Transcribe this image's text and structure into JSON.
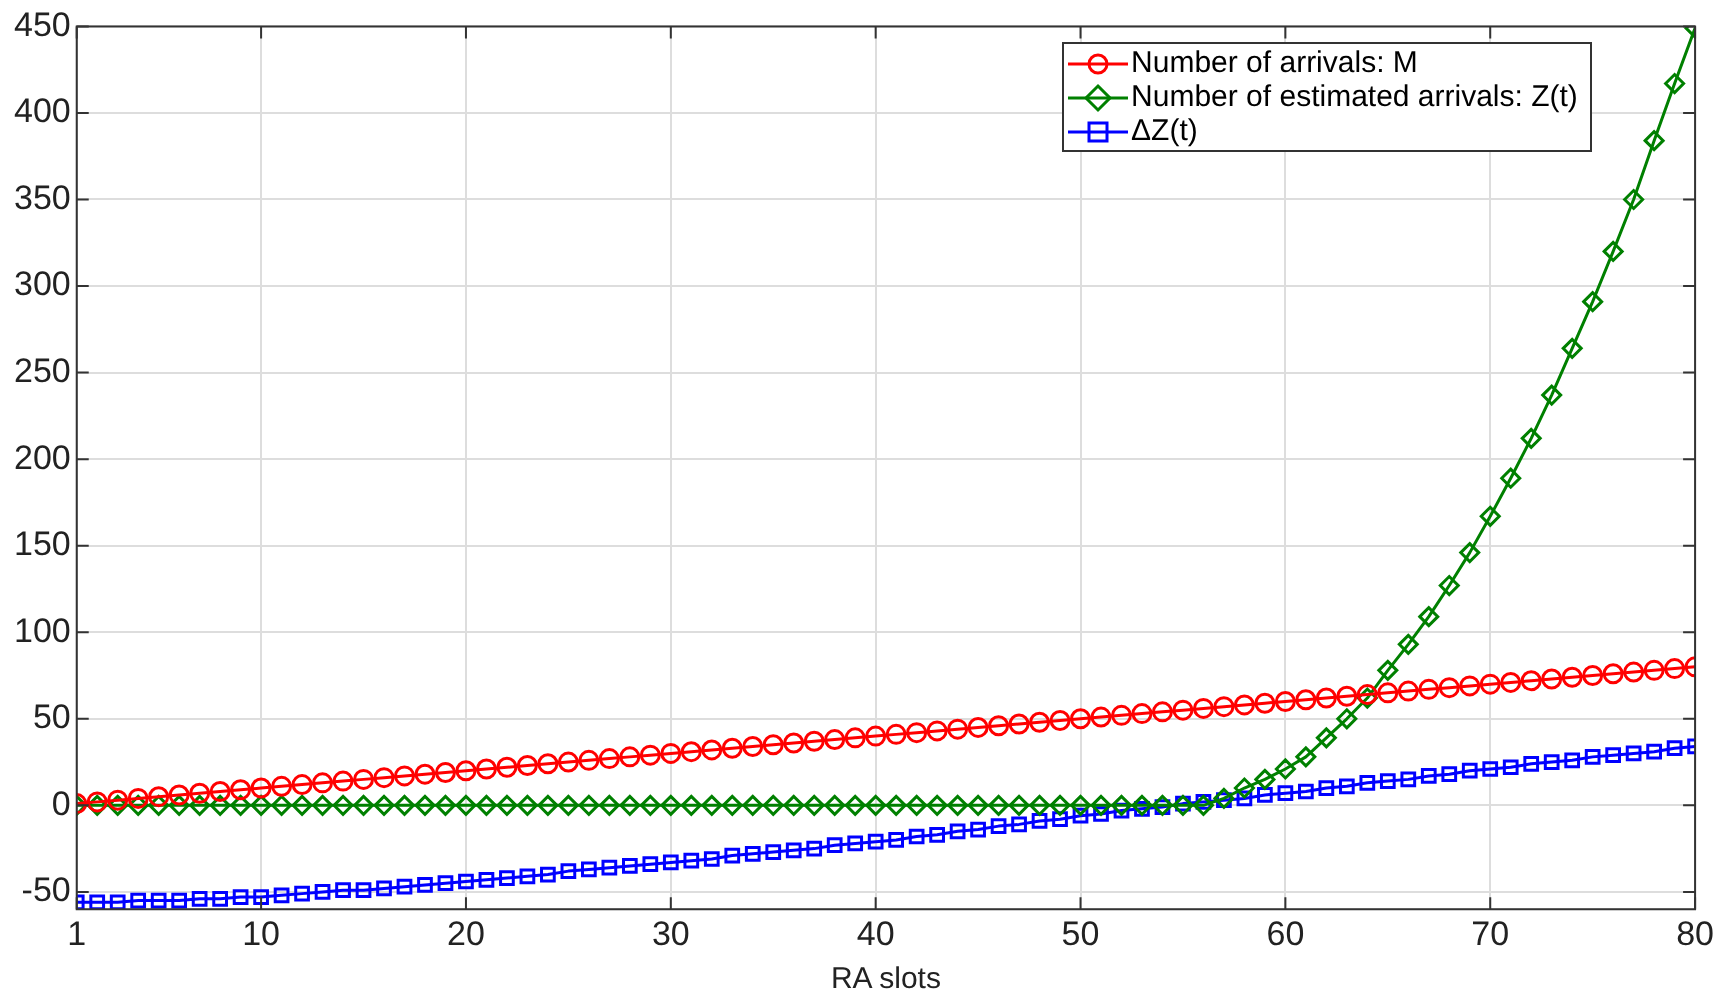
{
  "chart_data": {
    "type": "line",
    "xlabel": "RA slots",
    "x": [
      1,
      2,
      3,
      4,
      5,
      6,
      7,
      8,
      9,
      10,
      11,
      12,
      13,
      14,
      15,
      16,
      17,
      18,
      19,
      20,
      21,
      22,
      23,
      24,
      25,
      26,
      27,
      28,
      29,
      30,
      31,
      32,
      33,
      34,
      35,
      36,
      37,
      38,
      39,
      40,
      41,
      42,
      43,
      44,
      45,
      46,
      47,
      48,
      49,
      50,
      51,
      52,
      53,
      54,
      55,
      56,
      57,
      58,
      59,
      60,
      61,
      62,
      63,
      64,
      65,
      66,
      67,
      68,
      69,
      70,
      71,
      72,
      73,
      74,
      75,
      76,
      77,
      78,
      79,
      80
    ],
    "xlim": [
      1,
      80
    ],
    "xticks": [
      1,
      10,
      20,
      30,
      40,
      50,
      60,
      70,
      80
    ],
    "ylim": [
      -60,
      450
    ],
    "yticks": [
      -50,
      0,
      50,
      100,
      150,
      200,
      250,
      300,
      350,
      400,
      450
    ],
    "grid": true,
    "legend": "top right",
    "line_style": "solid",
    "series": [
      {
        "name": "Number of arrivals: M",
        "color": "#ff0000",
        "marker": "circle",
        "values": [
          1,
          2,
          3,
          4,
          5,
          6,
          7,
          8,
          9,
          10,
          11,
          12,
          13,
          14,
          15,
          16,
          17,
          18,
          19,
          20,
          21,
          22,
          23,
          24,
          25,
          26,
          27,
          28,
          29,
          30,
          31,
          32,
          33,
          34,
          35,
          36,
          37,
          38,
          39,
          40,
          41,
          42,
          43,
          44,
          45,
          46,
          47,
          48,
          49,
          50,
          51,
          52,
          53,
          54,
          55,
          56,
          57,
          58,
          59,
          60,
          61,
          62,
          63,
          64,
          65,
          66,
          67,
          68,
          69,
          70,
          71,
          72,
          73,
          74,
          75,
          76,
          77,
          78,
          79,
          80
        ]
      },
      {
        "name": "Number of estimated arrivals: Z(t)",
        "color": "#008000",
        "marker": "diamond",
        "values": [
          0,
          0,
          0,
          0,
          0,
          0,
          0,
          0,
          0,
          0,
          0,
          0,
          0,
          0,
          0,
          0,
          0,
          0,
          0,
          0,
          0,
          0,
          0,
          0,
          0,
          0,
          0,
          0,
          0,
          0,
          0,
          0,
          0,
          0,
          0,
          0,
          0,
          0,
          0,
          0,
          0,
          0,
          0,
          0,
          0,
          0,
          0,
          0,
          0,
          0,
          0,
          0,
          0,
          0,
          0,
          0,
          4,
          10,
          15,
          21,
          28,
          39,
          50,
          62,
          78,
          93,
          109,
          127,
          146,
          167,
          189,
          212,
          237,
          264,
          291,
          320,
          350,
          384,
          417,
          449
        ]
      },
      {
        "name": "ΔZ(t)",
        "color": "#0000ff",
        "marker": "square",
        "values": [
          -56,
          -56,
          -56,
          -55,
          -55,
          -55,
          -54,
          -54,
          -53,
          -53,
          -52,
          -51,
          -50,
          -49,
          -49,
          -48,
          -47,
          -46,
          -45,
          -44,
          -43,
          -42,
          -41,
          -40,
          -38,
          -37,
          -36,
          -35,
          -34,
          -33,
          -32,
          -31,
          -29,
          -28,
          -27,
          -26,
          -25,
          -23,
          -22,
          -21,
          -20,
          -18,
          -17,
          -15,
          -14,
          -12,
          -11,
          -9,
          -8,
          -6,
          -5,
          -3,
          -2,
          -1,
          1,
          2,
          3,
          4,
          6,
          7,
          8,
          10,
          11,
          13,
          14,
          15,
          17,
          18,
          20,
          21,
          22,
          24,
          25,
          26,
          28,
          29,
          30,
          31,
          33,
          34
        ]
      }
    ]
  }
}
